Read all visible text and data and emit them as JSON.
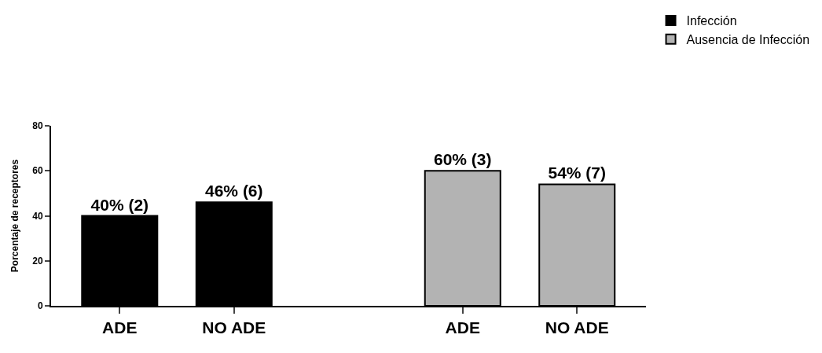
{
  "chart_data": {
    "type": "bar",
    "ylabel": "Porcentaje de receptores",
    "categories": [
      "ADE",
      "NO ADE",
      null,
      "ADE",
      "NO ADE"
    ],
    "series": [
      {
        "name": "Infección",
        "color": "#000000",
        "values": [
          40,
          46,
          null,
          null,
          null
        ],
        "value_labels": [
          "40% (2)",
          "46% (6)",
          null,
          null,
          null
        ]
      },
      {
        "name": "Ausencia de Infección",
        "color": "#b3b3b3",
        "values": [
          null,
          null,
          null,
          60,
          54
        ],
        "value_labels": [
          null,
          null,
          null,
          "60% (3)",
          "54% (7)"
        ]
      }
    ],
    "ylim": [
      0,
      80
    ],
    "yticks": [
      0,
      20,
      40,
      60,
      80
    ],
    "legend": "top right"
  }
}
